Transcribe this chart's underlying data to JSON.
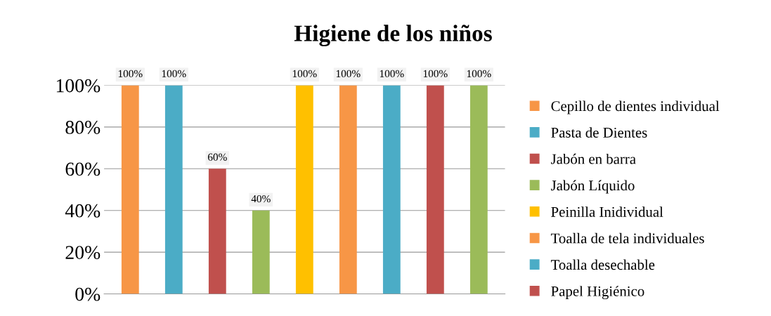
{
  "chart_data": {
    "type": "bar",
    "title": "Higiene de los niños",
    "categories": [
      null,
      null,
      null,
      null,
      null,
      null,
      null,
      null,
      null
    ],
    "series": [
      {
        "name": "Cepillo de dientes individual",
        "color": "#f79646",
        "values": [
          100,
          null,
          null,
          null,
          null,
          null,
          null,
          null,
          null
        ],
        "value_labels": [
          "100%",
          null,
          null,
          null,
          null,
          null,
          null,
          null,
          null
        ]
      },
      {
        "name": "Pasta de Dientes",
        "color": "#4bacc6",
        "values": [
          null,
          100,
          null,
          null,
          null,
          null,
          null,
          null,
          null
        ],
        "value_labels": [
          null,
          "100%",
          null,
          null,
          null,
          null,
          null,
          null,
          null
        ]
      },
      {
        "name": "Jabón en barra",
        "color": "#c0504d",
        "values": [
          null,
          null,
          60,
          null,
          null,
          null,
          null,
          null,
          null
        ],
        "value_labels": [
          null,
          null,
          "60%",
          null,
          null,
          null,
          null,
          null,
          null
        ]
      },
      {
        "name": "Jabón Líquido",
        "color": "#9bbb59",
        "values": [
          null,
          null,
          null,
          40,
          null,
          null,
          null,
          null,
          null
        ],
        "value_labels": [
          null,
          null,
          null,
          "40%",
          null,
          null,
          null,
          null,
          null
        ]
      },
      {
        "name": "Peinilla Inidividual",
        "color": "#ffc000",
        "values": [
          null,
          null,
          null,
          null,
          100,
          null,
          null,
          null,
          null
        ],
        "value_labels": [
          null,
          null,
          null,
          null,
          "100%",
          null,
          null,
          null,
          null
        ]
      },
      {
        "name": "Toalla de tela individuales",
        "color": "#f79646",
        "values": [
          null,
          null,
          null,
          null,
          null,
          100,
          null,
          null,
          null
        ],
        "value_labels": [
          null,
          null,
          null,
          null,
          null,
          "100%",
          null,
          null,
          null
        ]
      },
      {
        "name": "Toalla desechable",
        "color": "#4bacc6",
        "values": [
          null,
          null,
          null,
          null,
          null,
          null,
          100,
          null,
          null
        ],
        "value_labels": [
          null,
          null,
          null,
          null,
          null,
          null,
          "100%",
          null,
          null
        ]
      },
      {
        "name": "Papel Higiénico",
        "color": "#c0504d",
        "values": [
          null,
          null,
          null,
          null,
          null,
          null,
          null,
          100,
          null
        ],
        "value_labels": [
          null,
          null,
          null,
          null,
          null,
          null,
          null,
          "100%",
          null
        ]
      },
      {
        "color": "#9bbb59",
        "values": [
          null,
          null,
          null,
          null,
          null,
          null,
          null,
          null,
          100
        ],
        "value_labels": [
          null,
          null,
          null,
          null,
          null,
          null,
          null,
          null,
          "100%"
        ]
      }
    ],
    "ylim": [
      0,
      100
    ],
    "yticks": [
      {
        "value": 0,
        "label": "0%"
      },
      {
        "value": 20,
        "label": "20%"
      },
      {
        "value": 40,
        "label": "40%"
      },
      {
        "value": 60,
        "label": "60%"
      },
      {
        "value": 80,
        "label": "80%"
      },
      {
        "value": 100,
        "label": "100%"
      }
    ],
    "grid": "y",
    "legend": "right",
    "tick_labels": "y"
  }
}
